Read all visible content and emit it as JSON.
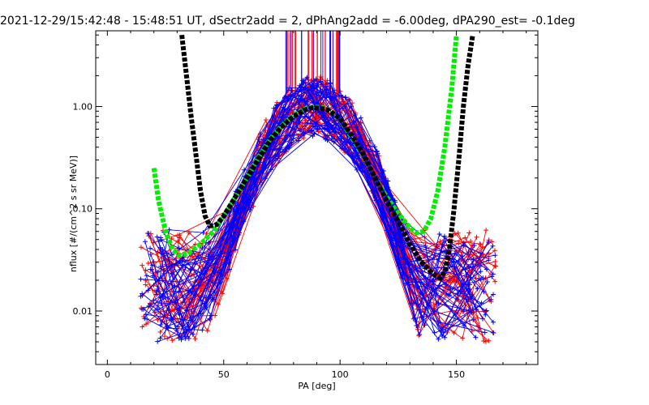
{
  "chart_data": {
    "type": "line",
    "title": "2021-12-29/15:42:48 - 15:48:51 UT, dSectr2add = 2, dPhAng2add = -6.00deg, dPA290_est=  -0.1deg",
    "xlabel": "PA [deg]",
    "ylabel": "nflux [#/(cm^2 s sr MeV)]",
    "xlim": [
      -5,
      185
    ],
    "ylim": [
      0.003,
      5.5
    ],
    "yscale": "log",
    "xticks": [
      0,
      50,
      100,
      150
    ],
    "yticks": [
      {
        "value": 0.01,
        "label": "0.01"
      },
      {
        "value": 0.1,
        "label": "0.10"
      },
      {
        "value": 1.0,
        "label": "1.00"
      }
    ],
    "grid": false,
    "legend": "none",
    "colors": {
      "series_a": "#ff0000",
      "series_b": "#0000ff",
      "fit_a": "#00ee00",
      "fit_b": "#000000"
    },
    "series": [
      {
        "color": "#ff0000",
        "style": "lines+plus",
        "count": 40
      },
      {
        "color": "#0000ff",
        "style": "lines+plus",
        "count": 40
      },
      {
        "color": "#00ee00",
        "style": "dashed",
        "x": [
          20,
          22,
          25,
          28,
          31,
          35,
          40,
          45,
          50,
          55,
          60,
          65,
          70,
          75,
          80,
          85,
          88,
          92,
          95,
          100,
          105,
          110,
          115,
          120,
          125,
          130,
          133,
          136,
          139,
          142,
          145,
          148,
          150
        ],
        "y": [
          0.25,
          0.12,
          0.06,
          0.04,
          0.035,
          0.037,
          0.045,
          0.058,
          0.085,
          0.13,
          0.2,
          0.32,
          0.48,
          0.65,
          0.82,
          0.95,
          0.99,
          0.98,
          0.93,
          0.75,
          0.5,
          0.33,
          0.2,
          0.13,
          0.09,
          0.065,
          0.058,
          0.06,
          0.08,
          0.15,
          0.4,
          1.5,
          5.0
        ]
      },
      {
        "color": "#000000",
        "style": "dashed",
        "x": [
          32,
          34,
          36,
          38,
          40,
          42,
          44,
          47,
          50,
          55,
          60,
          65,
          70,
          75,
          80,
          85,
          88,
          92,
          95,
          100,
          105,
          110,
          115,
          120,
          125,
          130,
          135,
          140,
          143,
          145,
          147,
          149,
          151,
          153,
          155,
          157
        ],
        "y": [
          5.0,
          2.0,
          0.8,
          0.35,
          0.15,
          0.085,
          0.068,
          0.07,
          0.085,
          0.13,
          0.2,
          0.31,
          0.47,
          0.64,
          0.8,
          0.93,
          0.97,
          0.96,
          0.92,
          0.76,
          0.52,
          0.34,
          0.2,
          0.12,
          0.075,
          0.045,
          0.03,
          0.023,
          0.021,
          0.024,
          0.04,
          0.1,
          0.3,
          1.0,
          2.5,
          5.0
        ]
      }
    ]
  }
}
